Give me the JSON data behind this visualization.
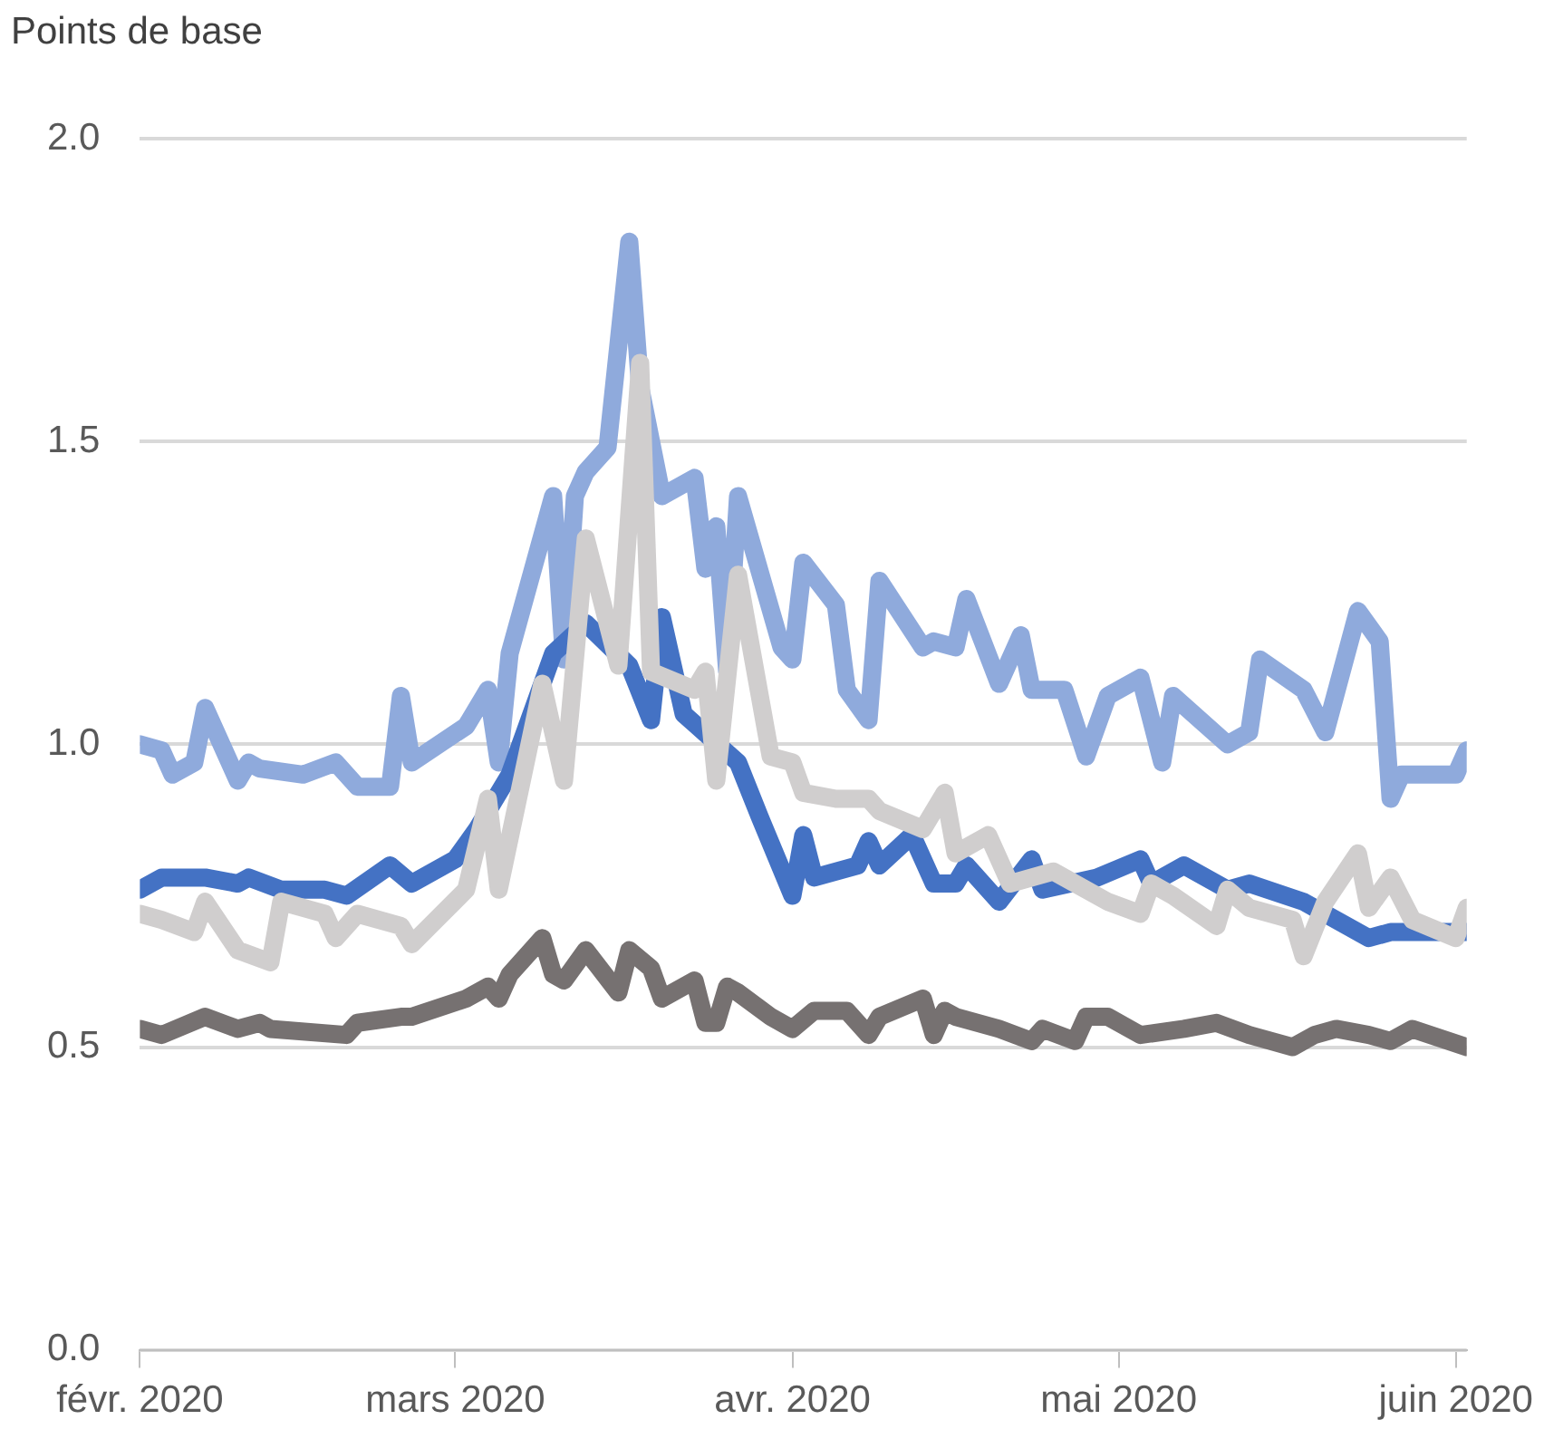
{
  "chart_data": {
    "type": "line",
    "ylabel": "Points de base",
    "xlim": [
      "2020-02-01",
      "2020-06-02"
    ],
    "xticks": [
      {
        "value": "2020-02-01",
        "label": "févr. 2020"
      },
      {
        "value": "2020-03-01",
        "label": "mars 2020"
      },
      {
        "value": "2020-04-01",
        "label": "avr. 2020"
      },
      {
        "value": "2020-05-01",
        "label": "mai 2020"
      },
      {
        "value": "2020-06-01",
        "label": "juin 2020"
      }
    ],
    "ylim": [
      0,
      2
    ],
    "yticks": [
      {
        "value": 0,
        "label": "0.0"
      },
      {
        "value": 0.5,
        "label": "0.5"
      },
      {
        "value": 1,
        "label": "1.0"
      },
      {
        "value": 1.5,
        "label": "1.5"
      },
      {
        "value": 2,
        "label": "2.0"
      }
    ],
    "grid": "y",
    "legend": false,
    "marker": "none",
    "line_style": "solid",
    "series": [
      {
        "color": "#8faadc",
        "x": [
          "2020-02-01",
          "2020-02-03",
          "2020-02-04",
          "2020-02-06",
          "2020-02-07",
          "2020-02-10",
          "2020-02-11",
          "2020-02-12",
          "2020-02-16",
          "2020-02-19",
          "2020-02-21",
          "2020-02-24",
          "2020-02-25",
          "2020-02-26",
          "2020-03-02",
          "2020-03-04",
          "2020-03-05",
          "2020-03-06",
          "2020-03-10",
          "2020-03-11",
          "2020-03-12",
          "2020-03-13",
          "2020-03-15",
          "2020-03-17",
          "2020-03-18",
          "2020-03-20",
          "2020-03-23",
          "2020-03-24",
          "2020-03-25",
          "2020-03-26",
          "2020-03-27",
          "2020-03-31",
          "2020-04-01",
          "2020-04-02",
          "2020-04-05",
          "2020-04-06",
          "2020-04-08",
          "2020-04-09",
          "2020-04-13",
          "2020-04-14",
          "2020-04-16",
          "2020-04-17",
          "2020-04-20",
          "2020-04-22",
          "2020-04-23",
          "2020-04-26",
          "2020-04-28",
          "2020-04-30",
          "2020-05-03",
          "2020-05-05",
          "2020-05-06",
          "2020-05-11",
          "2020-05-13",
          "2020-05-14",
          "2020-05-18",
          "2020-05-20",
          "2020-05-23",
          "2020-05-25",
          "2020-05-26",
          "2020-05-27",
          "2020-06-01",
          "2020-06-02"
        ],
        "values": [
          1.0,
          0.99,
          0.95,
          0.97,
          1.06,
          0.94,
          0.97,
          0.96,
          0.95,
          0.97,
          0.93,
          0.93,
          1.08,
          0.97,
          1.03,
          1.09,
          0.97,
          1.15,
          1.41,
          1.14,
          1.41,
          1.45,
          1.49,
          1.83,
          1.59,
          1.41,
          1.44,
          1.29,
          1.36,
          1.12,
          1.41,
          1.16,
          1.14,
          1.3,
          1.23,
          1.09,
          1.04,
          1.27,
          1.16,
          1.17,
          1.16,
          1.24,
          1.1,
          1.18,
          1.09,
          1.09,
          0.98,
          1.08,
          1.11,
          0.97,
          1.08,
          1.0,
          1.02,
          1.14,
          1.09,
          1.02,
          1.22,
          1.17,
          0.91,
          0.95,
          0.95,
          0.99
        ]
      },
      {
        "color": "#4472c4",
        "x": [
          "2020-02-01",
          "2020-02-03",
          "2020-02-07",
          "2020-02-10",
          "2020-02-11",
          "2020-02-14",
          "2020-02-18",
          "2020-02-20",
          "2020-02-24",
          "2020-02-26",
          "2020-03-01",
          "2020-03-03",
          "2020-03-06",
          "2020-03-10",
          "2020-03-13",
          "2020-03-17",
          "2020-03-19",
          "2020-03-20",
          "2020-03-22",
          "2020-03-27",
          "2020-03-29",
          "2020-04-01",
          "2020-04-02",
          "2020-04-03",
          "2020-04-07",
          "2020-04-08",
          "2020-04-09",
          "2020-04-12",
          "2020-04-14",
          "2020-04-16",
          "2020-04-17",
          "2020-04-20",
          "2020-04-23",
          "2020-04-24",
          "2020-04-29",
          "2020-05-03",
          "2020-05-04",
          "2020-05-07",
          "2020-05-11",
          "2020-05-13",
          "2020-05-18",
          "2020-05-24",
          "2020-05-26",
          "2020-05-28",
          "2020-06-02"
        ],
        "values": [
          0.76,
          0.78,
          0.78,
          0.77,
          0.78,
          0.76,
          0.76,
          0.75,
          0.8,
          0.77,
          0.81,
          0.86,
          0.95,
          1.15,
          1.2,
          1.13,
          1.04,
          1.21,
          1.05,
          0.97,
          0.88,
          0.75,
          0.85,
          0.78,
          0.8,
          0.84,
          0.8,
          0.85,
          0.77,
          0.77,
          0.8,
          0.74,
          0.81,
          0.76,
          0.78,
          0.81,
          0.77,
          0.8,
          0.76,
          0.77,
          0.74,
          0.68,
          0.69,
          0.69,
          0.69
        ]
      },
      {
        "color": "#d0cece",
        "x": [
          "2020-02-01",
          "2020-02-03",
          "2020-02-06",
          "2020-02-07",
          "2020-02-10",
          "2020-02-13",
          "2020-02-14",
          "2020-02-18",
          "2020-02-19",
          "2020-02-21",
          "2020-02-25",
          "2020-02-26",
          "2020-03-02",
          "2020-03-04",
          "2020-03-05",
          "2020-03-09",
          "2020-03-11",
          "2020-03-13",
          "2020-03-16",
          "2020-03-18",
          "2020-03-19",
          "2020-03-23",
          "2020-03-24",
          "2020-03-25",
          "2020-03-27",
          "2020-03-30",
          "2020-04-01",
          "2020-04-02",
          "2020-04-05",
          "2020-04-08",
          "2020-04-09",
          "2020-04-13",
          "2020-04-15",
          "2020-04-16",
          "2020-04-19",
          "2020-04-21",
          "2020-04-25",
          "2020-04-30",
          "2020-05-03",
          "2020-05-04",
          "2020-05-06",
          "2020-05-10",
          "2020-05-11",
          "2020-05-13",
          "2020-05-17",
          "2020-05-18",
          "2020-05-20",
          "2020-05-23",
          "2020-05-24",
          "2020-05-26",
          "2020-05-28",
          "2020-06-01",
          "2020-06-02"
        ],
        "values": [
          0.72,
          0.71,
          0.69,
          0.74,
          0.66,
          0.64,
          0.74,
          0.72,
          0.68,
          0.72,
          0.7,
          0.67,
          0.76,
          0.91,
          0.76,
          1.1,
          0.94,
          1.34,
          1.13,
          1.63,
          1.12,
          1.09,
          1.12,
          0.94,
          1.28,
          0.98,
          0.97,
          0.92,
          0.91,
          0.91,
          0.89,
          0.86,
          0.92,
          0.82,
          0.85,
          0.77,
          0.79,
          0.74,
          0.72,
          0.77,
          0.75,
          0.7,
          0.76,
          0.73,
          0.71,
          0.65,
          0.74,
          0.82,
          0.73,
          0.78,
          0.71,
          0.68,
          0.73
        ]
      },
      {
        "color": "#767171",
        "x": [
          "2020-02-01",
          "2020-02-03",
          "2020-02-07",
          "2020-02-10",
          "2020-02-12",
          "2020-02-13",
          "2020-02-20",
          "2020-02-21",
          "2020-02-25",
          "2020-02-26",
          "2020-03-02",
          "2020-03-04",
          "2020-03-05",
          "2020-03-06",
          "2020-03-09",
          "2020-03-10",
          "2020-03-11",
          "2020-03-13",
          "2020-03-16",
          "2020-03-17",
          "2020-03-19",
          "2020-03-20",
          "2020-03-23",
          "2020-03-24",
          "2020-03-25",
          "2020-03-26",
          "2020-03-27",
          "2020-03-30",
          "2020-04-01",
          "2020-04-03",
          "2020-04-06",
          "2020-04-08",
          "2020-04-09",
          "2020-04-13",
          "2020-04-14",
          "2020-04-15",
          "2020-04-16",
          "2020-04-20",
          "2020-04-23",
          "2020-04-24",
          "2020-04-27",
          "2020-04-28",
          "2020-04-30",
          "2020-05-03",
          "2020-05-07",
          "2020-05-10",
          "2020-05-13",
          "2020-05-17",
          "2020-05-19",
          "2020-05-21",
          "2020-05-24",
          "2020-05-26",
          "2020-05-28",
          "2020-06-02"
        ],
        "values": [
          0.53,
          0.52,
          0.55,
          0.53,
          0.54,
          0.53,
          0.52,
          0.54,
          0.55,
          0.55,
          0.58,
          0.6,
          0.58,
          0.62,
          0.68,
          0.62,
          0.61,
          0.66,
          0.59,
          0.66,
          0.63,
          0.58,
          0.61,
          0.54,
          0.54,
          0.6,
          0.59,
          0.55,
          0.53,
          0.56,
          0.56,
          0.52,
          0.55,
          0.58,
          0.52,
          0.56,
          0.55,
          0.53,
          0.51,
          0.53,
          0.51,
          0.55,
          0.55,
          0.52,
          0.53,
          0.54,
          0.52,
          0.5,
          0.52,
          0.53,
          0.52,
          0.51,
          0.53,
          0.5
        ]
      }
    ]
  }
}
